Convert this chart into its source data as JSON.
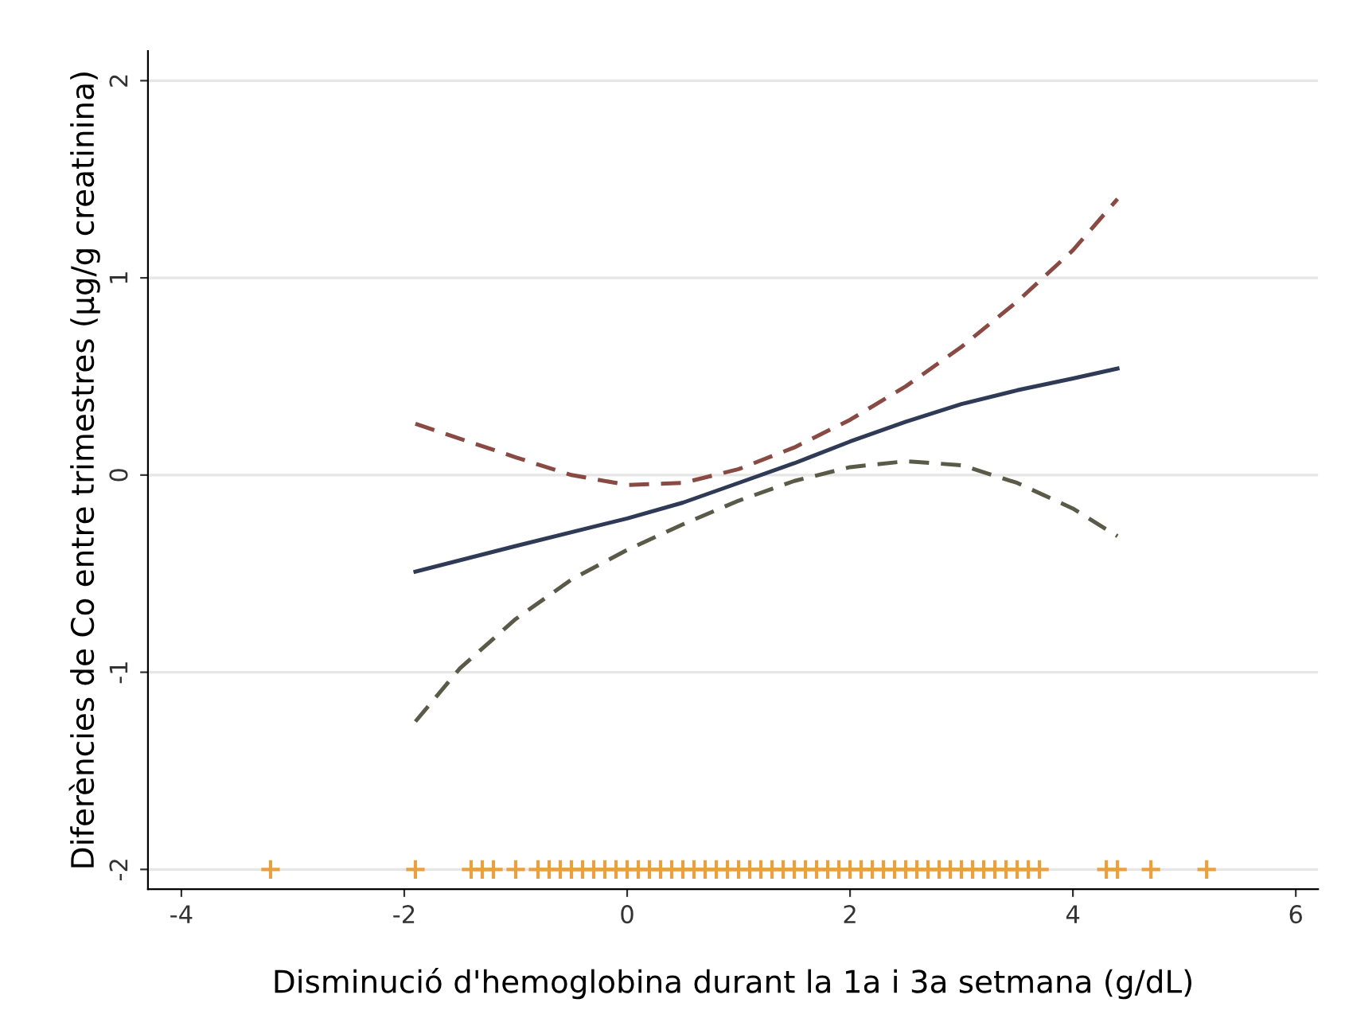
{
  "chart_data": {
    "type": "line",
    "xlabel": "Disminució d'hemoglobina durant la 1a i 3a setmana (g/dL)",
    "ylabel": "Diferències de Co entre trimestres (µg/g creatinina)",
    "xlim": [
      -4.3,
      6.2
    ],
    "ylim": [
      -2.1,
      2.15
    ],
    "xticks": [
      -4,
      -2,
      0,
      2,
      4,
      6
    ],
    "yticks": [
      -2,
      -1,
      0,
      1,
      2
    ],
    "grid": "y",
    "series": [
      {
        "color": "#2f3a56",
        "line_style": "solid",
        "x": [
          -1.9,
          -1,
          0,
          0.5,
          1,
          1.5,
          2,
          2.5,
          3,
          3.5,
          4,
          4.4
        ],
        "values": [
          -0.49,
          -0.36,
          -0.22,
          -0.14,
          -0.04,
          0.06,
          0.17,
          0.27,
          0.36,
          0.43,
          0.49,
          0.54
        ]
      },
      {
        "color": "#8a4a44",
        "line_style": "dashed",
        "x": [
          -1.9,
          -1,
          -0.5,
          0,
          0.5,
          1,
          1.5,
          2,
          2.5,
          3,
          3.5,
          4,
          4.4
        ],
        "values": [
          0.26,
          0.09,
          0.0,
          -0.05,
          -0.04,
          0.03,
          0.14,
          0.28,
          0.45,
          0.65,
          0.88,
          1.14,
          1.4
        ]
      },
      {
        "color": "#5a5a48",
        "line_style": "dashed",
        "x": [
          -1.9,
          -1.5,
          -1,
          -0.5,
          0,
          0.5,
          1,
          1.5,
          2,
          2.5,
          3,
          3.5,
          4,
          4.4
        ],
        "values": [
          -1.25,
          -0.98,
          -0.73,
          -0.53,
          -0.38,
          -0.25,
          -0.13,
          -0.03,
          0.04,
          0.07,
          0.05,
          -0.04,
          -0.17,
          -0.31
        ]
      },
      {
        "type": "scatter",
        "color": "#e8a040",
        "marker": "cross",
        "x": [
          -3.2,
          -1.9,
          -1.4,
          -1.3,
          -1.2,
          -1.0,
          -0.8,
          -0.7,
          -0.6,
          -0.5,
          -0.4,
          -0.3,
          -0.2,
          -0.1,
          0,
          0.1,
          0.2,
          0.3,
          0.4,
          0.5,
          0.6,
          0.7,
          0.8,
          0.9,
          1.0,
          1.1,
          1.2,
          1.3,
          1.4,
          1.5,
          1.6,
          1.7,
          1.8,
          1.9,
          2.0,
          2.1,
          2.2,
          2.3,
          2.4,
          2.5,
          2.6,
          2.7,
          2.8,
          2.9,
          3.0,
          3.1,
          3.2,
          3.3,
          3.4,
          3.5,
          3.6,
          3.7,
          4.3,
          4.4,
          4.7,
          5.2
        ],
        "values": [
          -2,
          -2,
          -2,
          -2,
          -2,
          -2,
          -2,
          -2,
          -2,
          -2,
          -2,
          -2,
          -2,
          -2,
          -2,
          -2,
          -2,
          -2,
          -2,
          -2,
          -2,
          -2,
          -2,
          -2,
          -2,
          -2,
          -2,
          -2,
          -2,
          -2,
          -2,
          -2,
          -2,
          -2,
          -2,
          -2,
          -2,
          -2,
          -2,
          -2,
          -2,
          -2,
          -2,
          -2,
          -2,
          -2,
          -2,
          -2,
          -2,
          -2,
          -2,
          -2,
          -2,
          -2,
          -2,
          -2
        ]
      }
    ]
  }
}
